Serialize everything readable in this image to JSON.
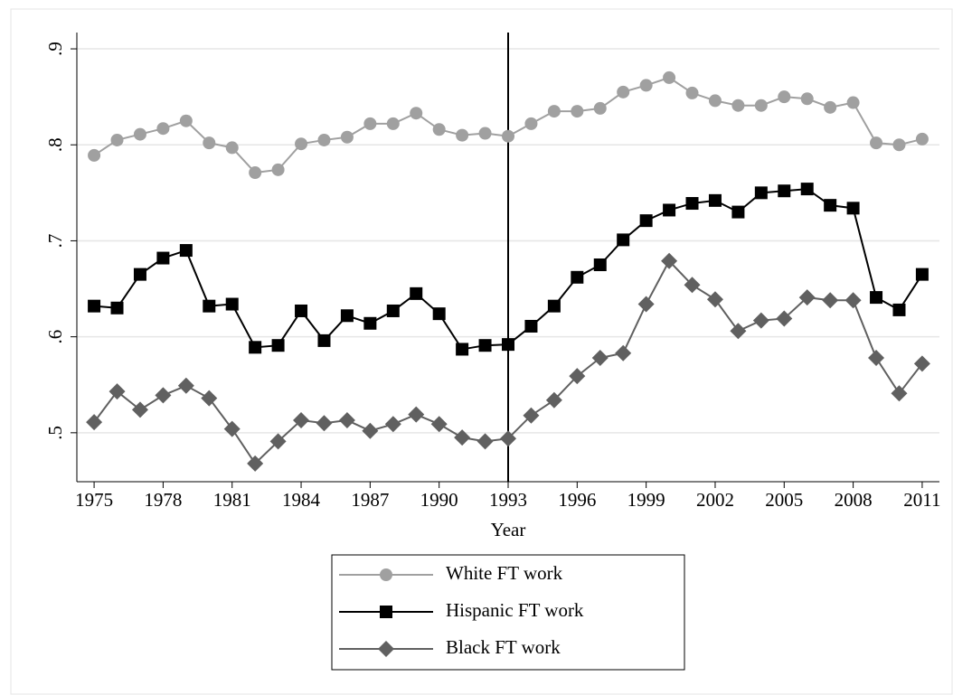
{
  "chart_data": {
    "type": "line",
    "xlabel": "Year",
    "x": [
      1975,
      1976,
      1977,
      1978,
      1979,
      1980,
      1981,
      1982,
      1983,
      1984,
      1985,
      1986,
      1987,
      1988,
      1989,
      1990,
      1991,
      1992,
      1993,
      1994,
      1995,
      1996,
      1997,
      1998,
      1999,
      2000,
      2001,
      2002,
      2003,
      2004,
      2005,
      2006,
      2007,
      2008,
      2009,
      2010,
      2011
    ],
    "series": [
      {
        "name": "White FT work",
        "color": "#a0a0a0",
        "marker": "circle",
        "values": [
          0.789,
          0.805,
          0.811,
          0.817,
          0.825,
          0.802,
          0.797,
          0.771,
          0.774,
          0.801,
          0.805,
          0.808,
          0.822,
          0.822,
          0.833,
          0.816,
          0.81,
          0.812,
          0.809,
          0.822,
          0.835,
          0.835,
          0.838,
          0.855,
          0.862,
          0.87,
          0.854,
          0.846,
          0.841,
          0.841,
          0.85,
          0.848,
          0.839,
          0.844,
          0.802,
          0.8,
          0.806
        ]
      },
      {
        "name": "Hispanic FT work",
        "color": "#000000",
        "marker": "square",
        "values": [
          0.632,
          0.63,
          0.665,
          0.682,
          0.69,
          0.632,
          0.634,
          0.589,
          0.591,
          0.627,
          0.596,
          0.622,
          0.614,
          0.627,
          0.645,
          0.624,
          0.587,
          0.591,
          0.592,
          0.611,
          0.632,
          0.662,
          0.675,
          0.701,
          0.721,
          0.732,
          0.739,
          0.742,
          0.73,
          0.75,
          0.752,
          0.754,
          0.737,
          0.734,
          0.641,
          0.628,
          0.665
        ]
      },
      {
        "name": "Black FT work",
        "color": "#606060",
        "marker": "diamond",
        "values": [
          0.511,
          0.543,
          0.524,
          0.539,
          0.549,
          0.536,
          0.504,
          0.468,
          0.491,
          0.513,
          0.51,
          0.513,
          0.502,
          0.509,
          0.519,
          0.509,
          0.495,
          0.491,
          0.494,
          0.518,
          0.534,
          0.559,
          0.578,
          0.583,
          0.634,
          0.679,
          0.654,
          0.639,
          0.606,
          0.617,
          0.619,
          0.641,
          0.638,
          0.638,
          0.578,
          0.541,
          0.572
        ]
      }
    ],
    "xlim": [
      1974.25,
      2011.75
    ],
    "xticks": [
      1975,
      1978,
      1981,
      1984,
      1987,
      1990,
      1993,
      1996,
      1999,
      2002,
      2005,
      2008,
      2011
    ],
    "ylim": [
      0.449,
      0.917
    ],
    "yticks": [
      {
        "value": 0.5,
        "label": ".5"
      },
      {
        "value": 0.6,
        "label": ".6"
      },
      {
        "value": 0.7,
        "label": ".7"
      },
      {
        "value": 0.8,
        "label": ".8"
      },
      {
        "value": 0.9,
        "label": ".9"
      }
    ],
    "xline": 1993,
    "grid": true,
    "legend": "bottom"
  }
}
